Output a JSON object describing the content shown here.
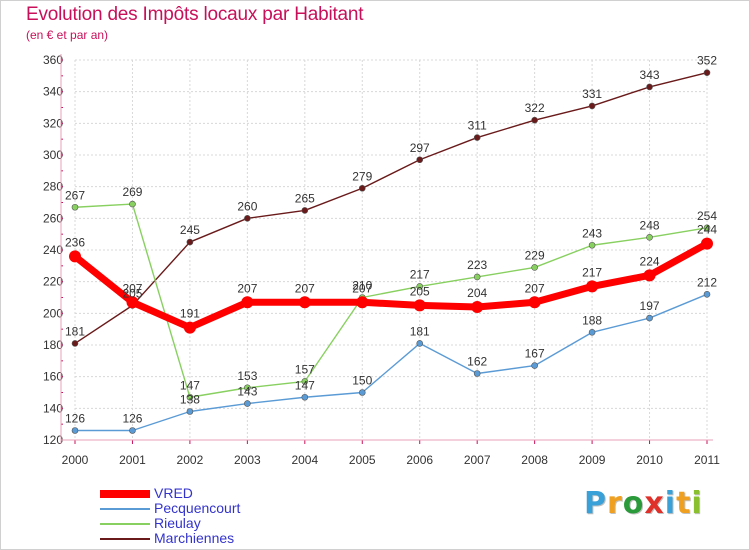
{
  "header": {
    "title": "Evolution des Impôts locaux par Habitant",
    "subtitle": "(en € et par an)"
  },
  "logo": {
    "letters": [
      "P",
      "r",
      "o",
      "x",
      "i",
      "t",
      "i"
    ],
    "colors": [
      "#3aa0d8",
      "#f0a020",
      "#2a9a3a",
      "#e0302a",
      "#3aa0d8",
      "#f0a020",
      "#8ac030"
    ]
  },
  "chart_data": {
    "type": "line",
    "title": "Evolution des Impôts locaux par Habitant",
    "subtitle": "(en € et par an)",
    "xlabel": "",
    "ylabel": "",
    "categories": [
      "2000",
      "2001",
      "2002",
      "2003",
      "2004",
      "2005",
      "2006",
      "2007",
      "2008",
      "2009",
      "2010",
      "2011"
    ],
    "yticks": [
      "120",
      "140",
      "160",
      "180",
      "200",
      "220",
      "240",
      "260",
      "280",
      "300",
      "320",
      "340",
      "360"
    ],
    "ylim": [
      120,
      360
    ],
    "grid": true,
    "legend_position": "bottom-left",
    "series": [
      {
        "name": "Marchiennes",
        "color": "#6a1a1a",
        "values": [
          181,
          205,
          245,
          260,
          265,
          279,
          297,
          311,
          322,
          331,
          343,
          352
        ],
        "labels": [
          "181",
          "205",
          "245",
          "260",
          "265",
          "279",
          "297",
          "311",
          "322",
          "331",
          "343",
          "352"
        ]
      },
      {
        "name": "Rieulay",
        "color": "#88d060",
        "values": [
          267,
          269,
          147,
          153,
          157,
          210,
          217,
          223,
          229,
          243,
          248,
          254
        ],
        "labels": [
          "267",
          "269",
          "147",
          "153",
          "157",
          "210",
          "217",
          "223",
          "229",
          "243",
          "248",
          "254"
        ]
      },
      {
        "name": "Pecquencourt",
        "color": "#5b9bd5",
        "values": [
          126,
          126,
          138,
          143,
          147,
          150,
          181,
          162,
          167,
          188,
          197,
          212
        ],
        "labels": [
          "126",
          "126",
          "138",
          "143",
          "147",
          "150",
          "181",
          "162",
          "167",
          "188",
          "197",
          "212"
        ]
      },
      {
        "name": "VRED",
        "color": "#ff0000",
        "values": [
          236,
          207,
          191,
          207,
          207,
          207,
          205,
          204,
          207,
          217,
          224,
          244
        ],
        "labels": [
          "236",
          "207",
          "191",
          "207",
          "207",
          "207",
          "205",
          "204",
          "207",
          "217",
          "224",
          "244"
        ]
      }
    ],
    "legend_order": [
      "VRED",
      "Pecquencourt",
      "Rieulay",
      "Marchiennes"
    ]
  }
}
